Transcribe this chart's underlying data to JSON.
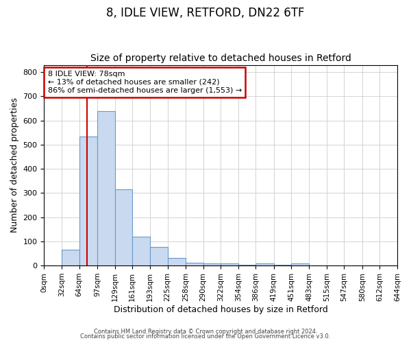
{
  "title1": "8, IDLE VIEW, RETFORD, DN22 6TF",
  "title2": "Size of property relative to detached houses in Retford",
  "xlabel": "Distribution of detached houses by size in Retford",
  "ylabel": "Number of detached properties",
  "bin_edges": [
    0,
    32,
    64,
    97,
    129,
    161,
    193,
    225,
    258,
    290,
    322,
    354,
    386,
    419,
    451,
    483,
    515,
    547,
    580,
    612,
    644
  ],
  "bar_heights": [
    0,
    65,
    535,
    640,
    315,
    120,
    77,
    32,
    13,
    10,
    10,
    4,
    8,
    4,
    8,
    0,
    0,
    0,
    0,
    0
  ],
  "bar_color": "#c9d9ef",
  "bar_edge_color": "#6699cc",
  "background_color": "#ffffff",
  "grid_color": "#cccccc",
  "red_line_x": 78,
  "annotation_box_text": "8 IDLE VIEW: 78sqm\n← 13% of detached houses are smaller (242)\n86% of semi-detached houses are larger (1,553) →",
  "annotation_box_color": "#cc0000",
  "ylim": [
    0,
    830
  ],
  "yticks": [
    0,
    100,
    200,
    300,
    400,
    500,
    600,
    700,
    800
  ],
  "footer1": "Contains HM Land Registry data © Crown copyright and database right 2024.",
  "footer2": "Contains public sector information licensed under the Open Government Licence v3.0.",
  "title1_fontsize": 12,
  "title2_fontsize": 10,
  "axis_label_fontsize": 9,
  "tick_label_fontsize": 7.5,
  "footer_fontsize": 6
}
